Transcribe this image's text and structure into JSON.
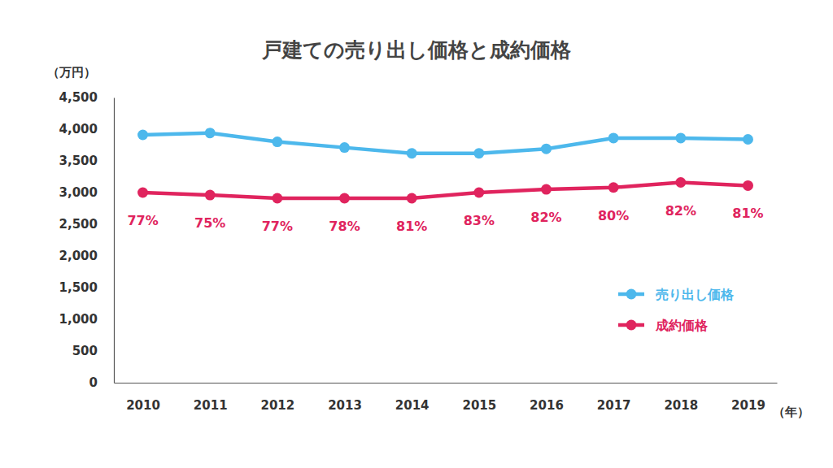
{
  "chart_data": {
    "type": "line",
    "title": "戸建ての売り出し価格と成約価格",
    "y_label": "（万円）",
    "x_label": "（年）",
    "categories": [
      "2010",
      "2011",
      "2012",
      "2013",
      "2014",
      "2015",
      "2016",
      "2017",
      "2018",
      "2019"
    ],
    "series": [
      {
        "name": "売り出し価格",
        "color": "#4db8ec",
        "marker": "circle",
        "values": [
          3910,
          3940,
          3800,
          3710,
          3620,
          3620,
          3690,
          3860,
          3860,
          3840
        ]
      },
      {
        "name": "成約価格",
        "color": "#e0245e",
        "marker": "circle",
        "values": [
          3000,
          2960,
          2910,
          2910,
          2910,
          3000,
          3050,
          3080,
          3160,
          3110
        ]
      }
    ],
    "annotations": [
      "77%",
      "75%",
      "77%",
      "78%",
      "81%",
      "83%",
      "82%",
      "80%",
      "82%",
      "81%"
    ],
    "ylim": [
      0,
      4500
    ],
    "yticks": [
      0,
      500,
      {
        "value": 1000,
        "label": "1,000"
      },
      {
        "value": 1500,
        "label": "1,500"
      },
      {
        "value": 2000,
        "label": "2,000"
      },
      {
        "value": 2500,
        "label": "2,500"
      },
      {
        "value": 3000,
        "label": "3,000"
      },
      {
        "value": 3500,
        "label": "3,500"
      },
      {
        "value": 4000,
        "label": "4,000"
      },
      {
        "value": 4500,
        "label": "4,500"
      }
    ],
    "grid": false,
    "legend": "right"
  }
}
